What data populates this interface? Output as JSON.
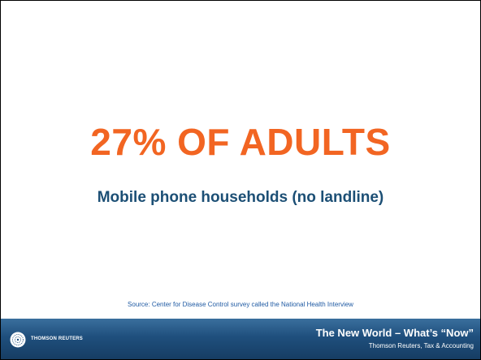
{
  "slide": {
    "headline": "27% OF ADULTS",
    "subheadline": "Mobile phone households (no landline)",
    "source": "Source: Center for Disease Control survey called the National Health Interview"
  },
  "footer": {
    "logo_text": "THOMSON REUTERS",
    "logo_icon": "thomson-reuters-logo-icon",
    "title": "The New World – What’s “Now”",
    "subtitle": "Thomson Reuters, Tax & Accounting"
  },
  "colors": {
    "headline": "#f26522",
    "subheadline": "#1c4f75",
    "source": "#1f5aa3",
    "footer_bar": "#1f4f7d"
  }
}
